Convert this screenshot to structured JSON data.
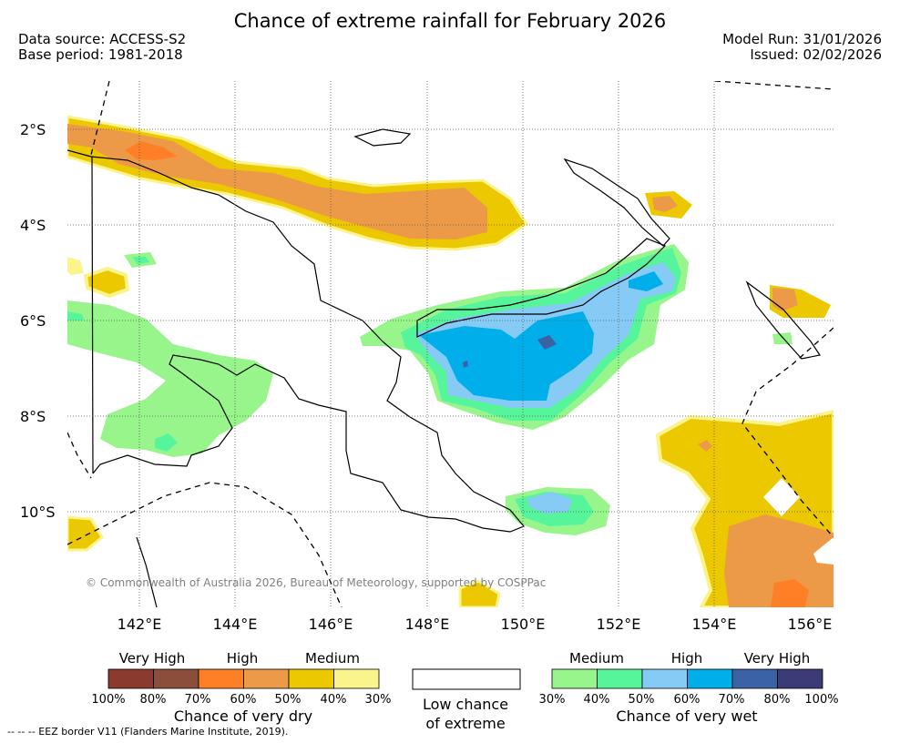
{
  "header": {
    "title": "Chance of extreme rainfall for February 2026",
    "data_source": "Data source: ACCESS-S2",
    "base_period": "Base period: 1981-2018",
    "model_run": "Model Run: 31/01/2026",
    "issued": "Issued: 02/02/2026"
  },
  "map": {
    "lat_labels": [
      "2°S",
      "4°S",
      "6°S",
      "8°S",
      "10°S"
    ],
    "lon_labels": [
      "142°E",
      "144°E",
      "146°E",
      "148°E",
      "150°E",
      "152°E",
      "154°E",
      "156°E"
    ],
    "copyright": "© Commonwealth of Australia 2026, Bureau of Meteorology, supported by COSPPac"
  },
  "legend": {
    "dry": {
      "tiers": [
        "Very High",
        "High",
        "Medium"
      ],
      "colors": [
        "#8b3a30",
        "#8a4f3a",
        "#ff7f27",
        "#ec9a48",
        "#ecc800",
        "#fbf48c"
      ],
      "ticks": [
        "100%",
        "80%",
        "70%",
        "60%",
        "50%",
        "40%",
        "30%"
      ],
      "caption": "Chance of very dry"
    },
    "low": {
      "caption_line1": "Low chance",
      "caption_line2": "of extreme"
    },
    "wet": {
      "tiers": [
        "Medium",
        "High",
        "Very High"
      ],
      "colors": [
        "#98f58c",
        "#56f59c",
        "#85cbf5",
        "#00aeea",
        "#3a62a5",
        "#3b3b78"
      ],
      "ticks": [
        "30%",
        "40%",
        "50%",
        "60%",
        "70%",
        "80%",
        "100%"
      ],
      "caption": "Chance of very wet"
    }
  },
  "footnote": "--  --  -- EEZ border V11 (Flanders Marine Institute, 2019)."
}
